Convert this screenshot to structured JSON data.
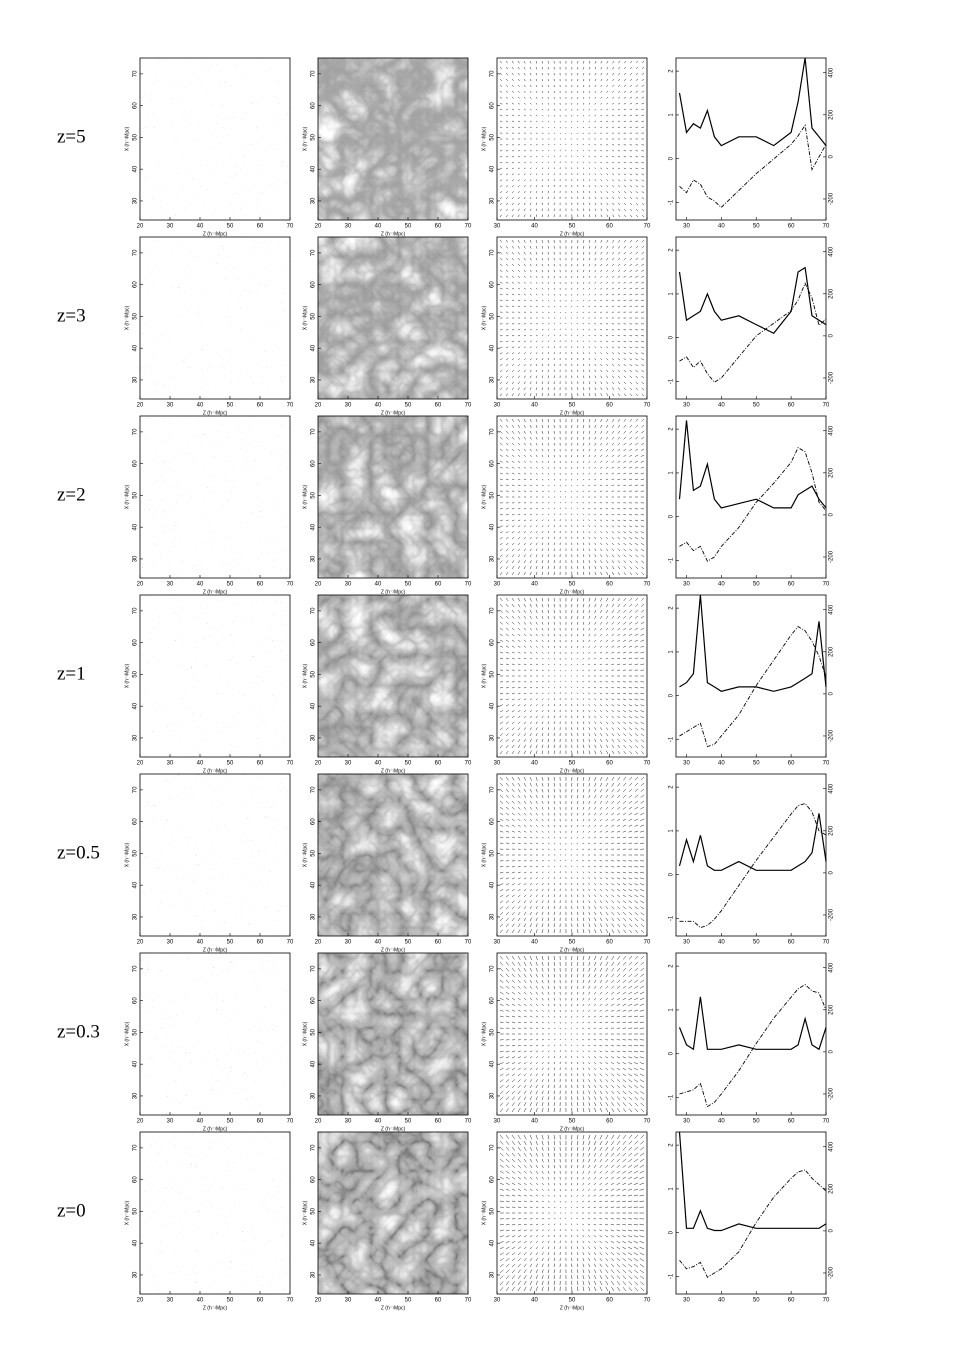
{
  "row_labels": [
    "z=5",
    "z=3",
    "z=2",
    "z=1",
    "z=0.5",
    "z=0.3",
    "z=0"
  ],
  "map_axes": {
    "xlim": [
      20,
      70
    ],
    "xticks": [
      20,
      30,
      40,
      50,
      60,
      70
    ],
    "ylim": [
      24,
      75
    ],
    "yticks": [
      30,
      40,
      50,
      60,
      70
    ],
    "xlabel": "Z (h⁻¹Mpc)",
    "ylabel": "X (h⁻¹Mpc)"
  },
  "velocity_axes": {
    "xlim": [
      30,
      70
    ],
    "xticks": [
      30,
      40,
      50,
      60,
      70
    ],
    "ylim": [
      24,
      75
    ],
    "yticks": [
      30,
      40,
      50,
      60,
      70
    ],
    "xlabel": "Z (h⁻¹Mpc)",
    "ylabel": "X (h⁻¹Mpc)"
  },
  "chart_data": [
    {
      "type": "line",
      "x": [
        28,
        30,
        32,
        34,
        36,
        38,
        40,
        45,
        50,
        55,
        60,
        62,
        64,
        66,
        68,
        70
      ],
      "xlim": [
        27,
        70
      ],
      "xticks": [
        30,
        40,
        50,
        60,
        70
      ],
      "ylim": [
        -1.4,
        2.3
      ],
      "yticks": [
        -1,
        0,
        1,
        2
      ],
      "y2lim": [
        -300,
        470
      ],
      "y2ticks": [
        -200,
        0,
        200,
        400
      ],
      "series": [
        {
          "color": "#000",
          "style": "solid",
          "values": [
            1.5,
            0.6,
            0.8,
            0.7,
            1.1,
            0.5,
            0.3,
            0.5,
            0.5,
            0.3,
            0.6,
            1.3,
            2.3,
            0.7,
            0.5,
            0.3
          ]
        },
        {
          "color": "#000",
          "style": "dashdot",
          "axis": "y2",
          "values": [
            -140,
            -170,
            -110,
            -130,
            -190,
            -210,
            -240,
            -160,
            -80,
            -10,
            60,
            100,
            150,
            -60,
            0,
            60
          ]
        }
      ]
    },
    {
      "type": "line",
      "x": [
        28,
        30,
        32,
        34,
        36,
        38,
        40,
        45,
        50,
        55,
        60,
        62,
        64,
        66,
        68,
        70
      ],
      "xlim": [
        27,
        70
      ],
      "xticks": [
        30,
        40,
        50,
        60,
        70
      ],
      "ylim": [
        -1.4,
        2.3
      ],
      "yticks": [
        -1,
        0,
        1,
        2
      ],
      "y2lim": [
        -300,
        470
      ],
      "y2ticks": [
        -200,
        0,
        200,
        400
      ],
      "series": [
        {
          "color": "#000",
          "style": "solid",
          "values": [
            1.5,
            0.4,
            0.5,
            0.6,
            1.0,
            0.6,
            0.4,
            0.5,
            0.3,
            0.1,
            0.6,
            1.5,
            1.6,
            0.5,
            0.4,
            0.3
          ]
        },
        {
          "color": "#000",
          "style": "dashdot",
          "axis": "y2",
          "values": [
            -120,
            -100,
            -150,
            -120,
            -180,
            -220,
            -200,
            -100,
            0,
            60,
            120,
            170,
            250,
            180,
            50,
            80
          ]
        }
      ]
    },
    {
      "type": "line",
      "x": [
        28,
        30,
        32,
        34,
        36,
        38,
        40,
        45,
        50,
        55,
        60,
        62,
        64,
        66,
        68,
        70
      ],
      "xlim": [
        27,
        70
      ],
      "xticks": [
        30,
        40,
        50,
        60,
        70
      ],
      "ylim": [
        -1.4,
        2.3
      ],
      "yticks": [
        -1,
        0,
        1,
        2
      ],
      "y2lim": [
        -300,
        470
      ],
      "y2ticks": [
        -200,
        0,
        200,
        400
      ],
      "series": [
        {
          "color": "#000",
          "style": "solid",
          "values": [
            0.4,
            2.2,
            0.6,
            0.7,
            1.2,
            0.4,
            0.2,
            0.3,
            0.4,
            0.2,
            0.2,
            0.5,
            0.6,
            0.7,
            0.4,
            0.2
          ]
        },
        {
          "color": "#000",
          "style": "dashdot",
          "axis": "y2",
          "values": [
            -150,
            -130,
            -170,
            -150,
            -220,
            -200,
            -150,
            -60,
            60,
            150,
            250,
            320,
            300,
            200,
            60,
            20
          ]
        }
      ]
    },
    {
      "type": "line",
      "x": [
        28,
        30,
        32,
        34,
        36,
        38,
        40,
        45,
        50,
        55,
        60,
        62,
        64,
        66,
        68,
        70
      ],
      "xlim": [
        27,
        70
      ],
      "xticks": [
        30,
        40,
        50,
        60,
        70
      ],
      "ylim": [
        -1.4,
        2.3
      ],
      "yticks": [
        -1,
        0,
        1,
        2
      ],
      "y2lim": [
        -300,
        470
      ],
      "y2ticks": [
        -200,
        0,
        200,
        400
      ],
      "series": [
        {
          "color": "#000",
          "style": "solid",
          "values": [
            0.2,
            0.3,
            0.5,
            2.3,
            0.3,
            0.2,
            0.1,
            0.2,
            0.2,
            0.1,
            0.2,
            0.3,
            0.4,
            0.5,
            1.7,
            0.2
          ]
        },
        {
          "color": "#000",
          "style": "dashdot",
          "axis": "y2",
          "values": [
            -200,
            -180,
            -160,
            -140,
            -250,
            -240,
            -200,
            -100,
            40,
            160,
            280,
            320,
            300,
            250,
            180,
            80
          ]
        }
      ]
    },
    {
      "type": "line",
      "x": [
        28,
        30,
        32,
        34,
        36,
        38,
        40,
        45,
        50,
        55,
        60,
        62,
        64,
        66,
        68,
        70
      ],
      "xlim": [
        27,
        70
      ],
      "xticks": [
        30,
        40,
        50,
        60,
        70
      ],
      "ylim": [
        -1.4,
        2.3
      ],
      "yticks": [
        -1,
        0,
        1,
        2
      ],
      "y2lim": [
        -300,
        470
      ],
      "y2ticks": [
        -200,
        0,
        200,
        400
      ],
      "series": [
        {
          "color": "#000",
          "style": "solid",
          "values": [
            0.2,
            0.8,
            0.3,
            0.9,
            0.2,
            0.1,
            0.1,
            0.3,
            0.1,
            0.1,
            0.1,
            0.2,
            0.3,
            0.5,
            1.4,
            0.3
          ]
        },
        {
          "color": "#000",
          "style": "dashdot",
          "axis": "y2",
          "values": [
            -230,
            -230,
            -230,
            -260,
            -250,
            -220,
            -180,
            -60,
            60,
            170,
            280,
            320,
            330,
            290,
            200,
            180
          ]
        }
      ]
    },
    {
      "type": "line",
      "x": [
        28,
        30,
        32,
        34,
        36,
        38,
        40,
        45,
        50,
        55,
        60,
        62,
        64,
        66,
        68,
        70
      ],
      "xlim": [
        27,
        70
      ],
      "xticks": [
        30,
        40,
        50,
        60,
        70
      ],
      "ylim": [
        -1.4,
        2.3
      ],
      "yticks": [
        -1,
        0,
        1,
        2
      ],
      "y2lim": [
        -300,
        470
      ],
      "y2ticks": [
        -200,
        0,
        200,
        400
      ],
      "series": [
        {
          "color": "#000",
          "style": "solid",
          "values": [
            0.6,
            0.2,
            0.1,
            1.3,
            0.1,
            0.1,
            0.1,
            0.2,
            0.1,
            0.1,
            0.1,
            0.2,
            0.8,
            0.2,
            0.1,
            0.6
          ]
        },
        {
          "color": "#000",
          "style": "dashdot",
          "axis": "y2",
          "values": [
            -200,
            -190,
            -180,
            -150,
            -260,
            -240,
            -200,
            -90,
            40,
            160,
            260,
            300,
            320,
            290,
            280,
            200
          ]
        }
      ]
    },
    {
      "type": "line",
      "x": [
        28,
        30,
        32,
        34,
        36,
        38,
        40,
        45,
        50,
        55,
        60,
        62,
        64,
        66,
        68,
        70
      ],
      "xlim": [
        27,
        70
      ],
      "xticks": [
        30,
        40,
        50,
        60,
        70
      ],
      "ylim": [
        -1.4,
        2.3
      ],
      "yticks": [
        -1,
        0,
        1,
        2
      ],
      "y2lim": [
        -300,
        470
      ],
      "y2ticks": [
        -200,
        0,
        200,
        400
      ],
      "series": [
        {
          "color": "#000",
          "style": "solid",
          "values": [
            2.3,
            0.1,
            0.1,
            0.5,
            0.1,
            0.05,
            0.05,
            0.2,
            0.1,
            0.1,
            0.1,
            0.1,
            0.1,
            0.1,
            0.1,
            0.2
          ]
        },
        {
          "color": "#000",
          "style": "dashdot",
          "axis": "y2",
          "values": [
            -140,
            -180,
            -170,
            -150,
            -220,
            -200,
            -180,
            -100,
            40,
            160,
            250,
            280,
            290,
            250,
            220,
            190
          ]
        }
      ]
    }
  ]
}
